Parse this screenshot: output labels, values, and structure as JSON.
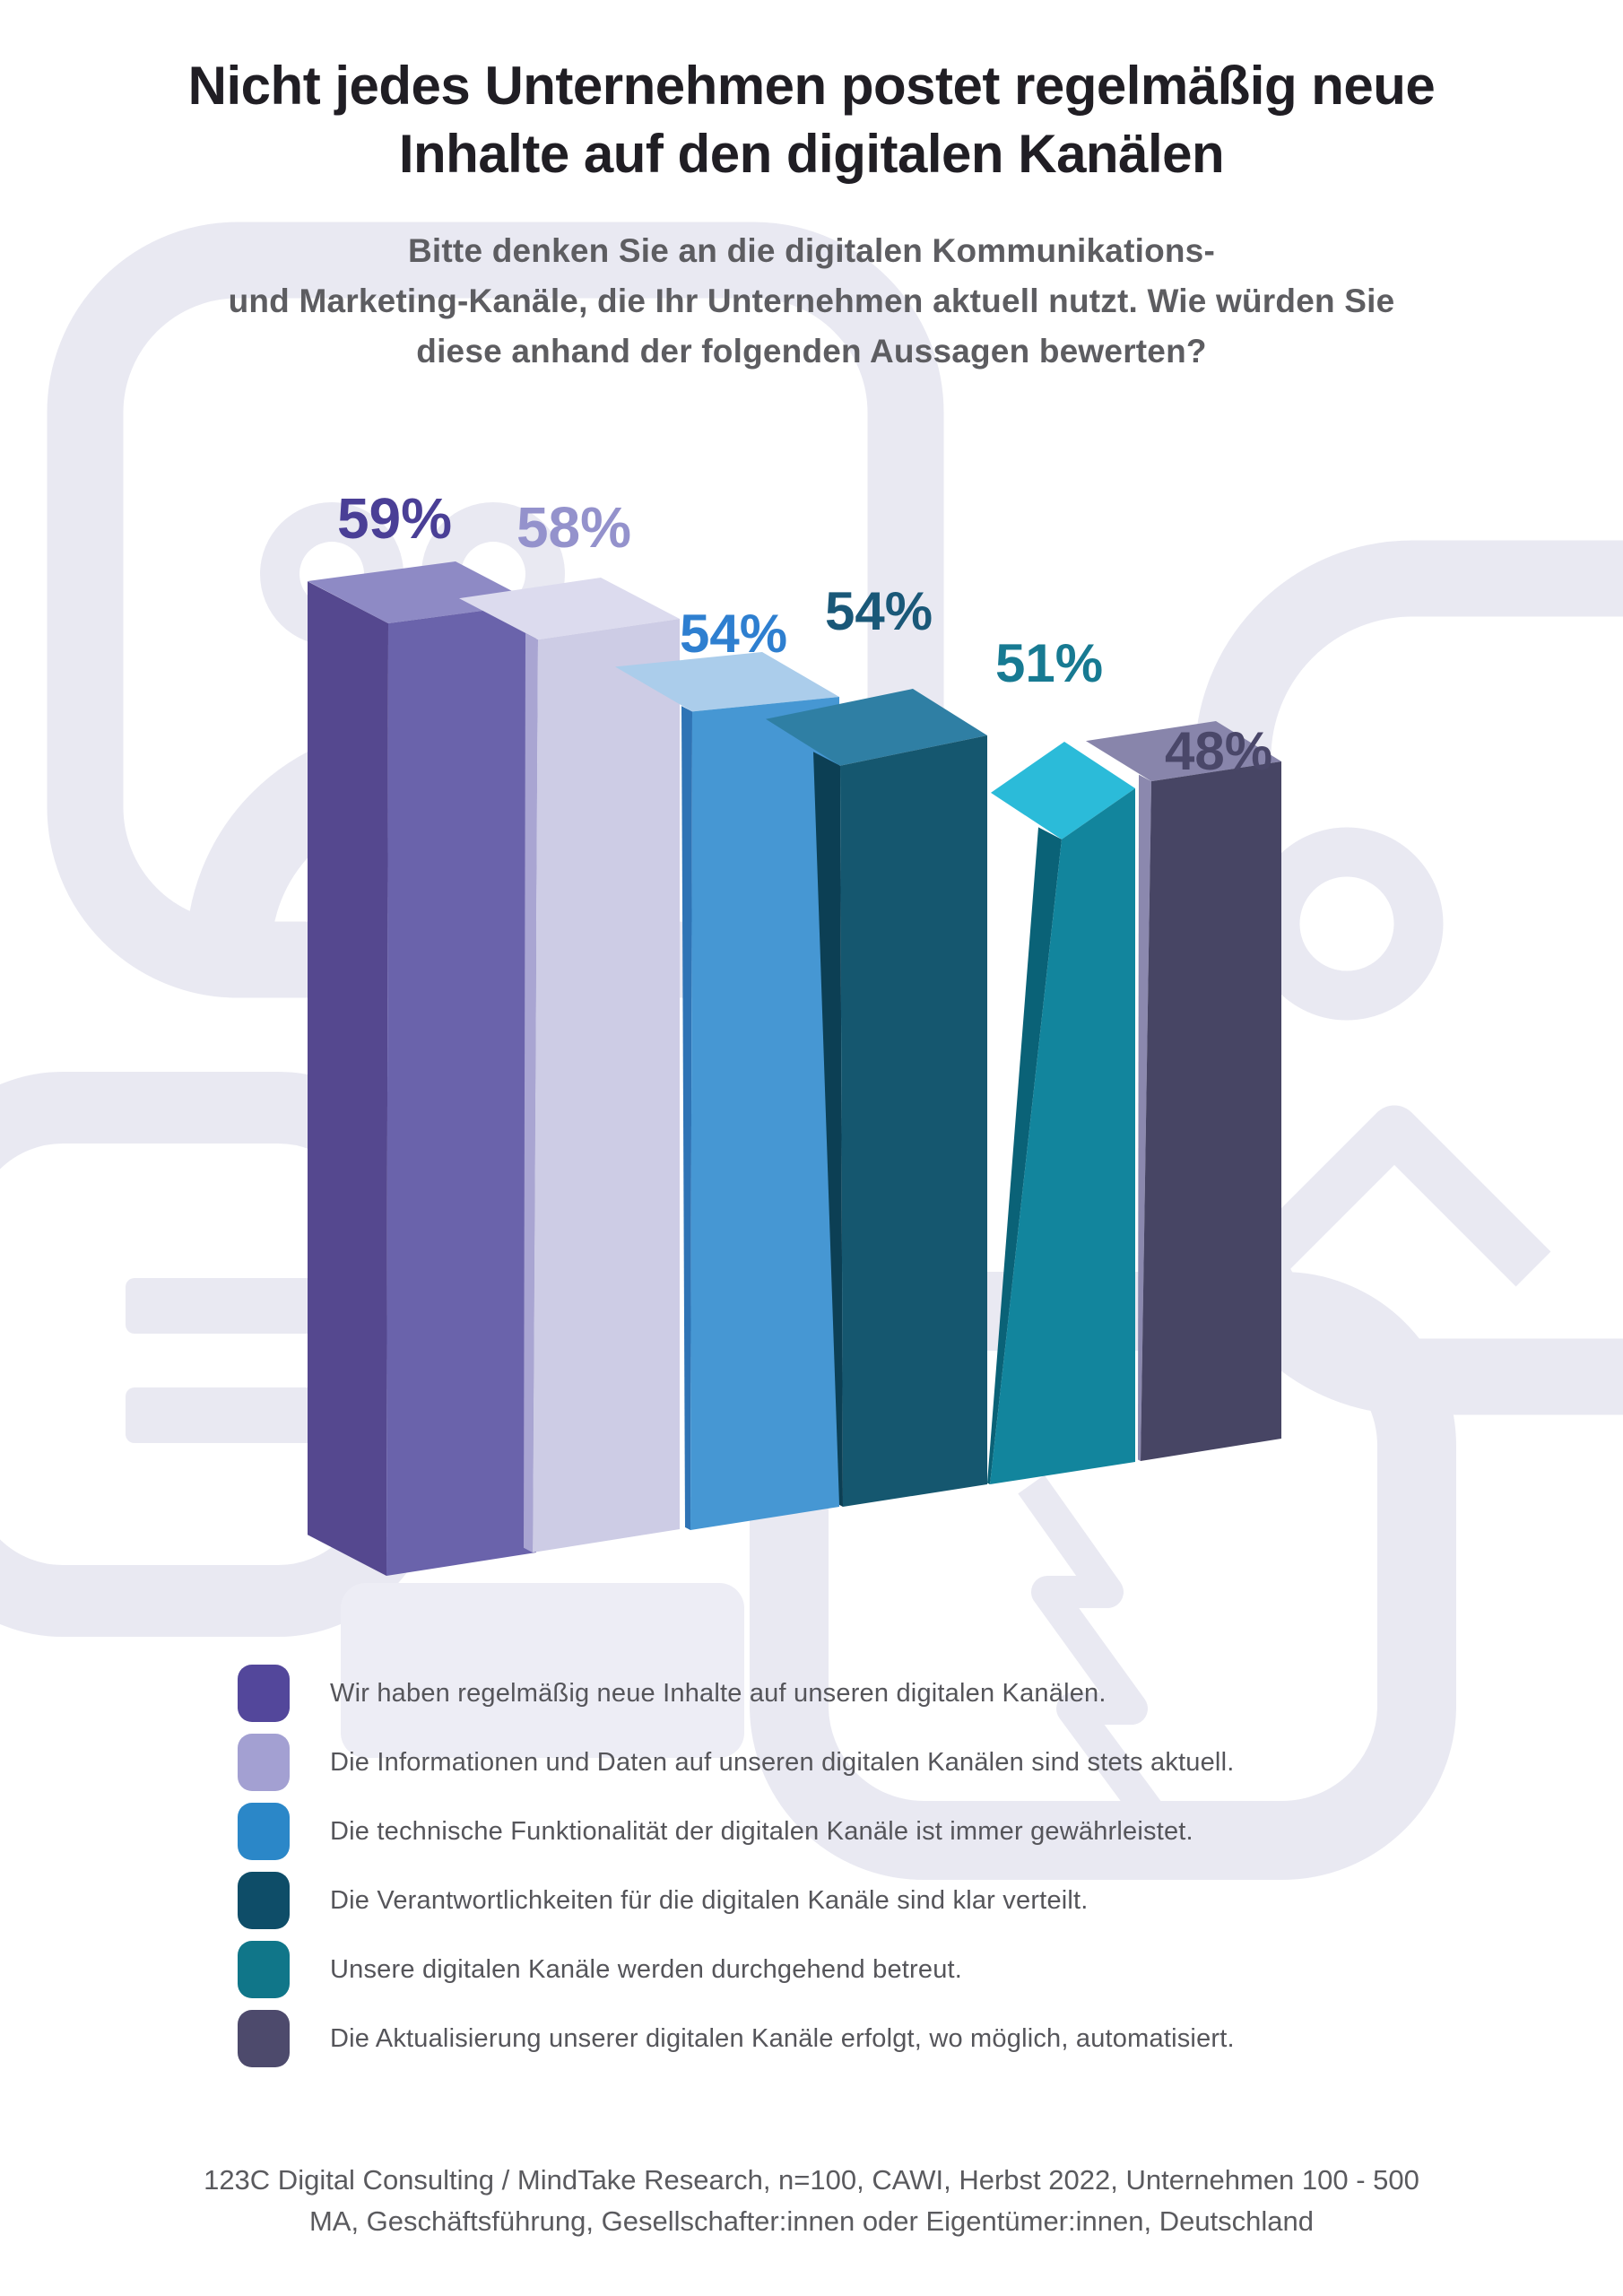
{
  "title": {
    "lines": [
      "Nicht jedes Unternehmen postet regelmäßig neue",
      "Inhalte auf den digitalen Kanälen"
    ]
  },
  "subtitle": {
    "lines": [
      "Bitte denken Sie an die digitalen Kommunikations-",
      "und Marketing-Kanäle, die Ihr Unternehmen aktuell nutzt. Wie würden Sie",
      "diese anhand der folgenden Aussagen bewerten?"
    ]
  },
  "chart_data": {
    "type": "bar",
    "title": "Nicht jedes Unternehmen postet regelmäßig neue Inhalte auf den digitalen Kanälen",
    "unit": "%",
    "ylim": [
      0,
      100
    ],
    "grid": false,
    "legend_position": "bottom",
    "categories": [
      "Wir haben regelmäßig neue Inhalte auf unseren digitalen Kanälen.",
      "Die Informationen und Daten auf unseren digitalen Kanälen sind stets aktuell.",
      "Die technische Funktionalität der digitalen Kanäle ist immer gewährleistet.",
      "Die Verantwortlichkeiten für die digitalen Kanäle sind klar verteilt.",
      "Unsere digitalen Kanäle werden durchgehend betreut.",
      "Die Aktualisierung unserer digitalen Kanäle erfolgt, wo möglich, automatisiert."
    ],
    "values": [
      59,
      58,
      54,
      54,
      51,
      48
    ],
    "data_labels": [
      "59%",
      "58%",
      "54%",
      "54%",
      "51%",
      "48%"
    ],
    "bar_colors": [
      {
        "front": "#6A63AB",
        "side": "#55488F",
        "top": "#8E8AC5",
        "label": "#4A3F96"
      },
      {
        "front": "#CDCCE5",
        "side": "#A9A5D2",
        "top": "#DCDBEE",
        "label": "#9492CC"
      },
      {
        "front": "#4697D3",
        "side": "#2F74B5",
        "top": "#ABCDEB",
        "label": "#2E7FD0"
      },
      {
        "front": "#15576F",
        "side": "#0C3F54",
        "top": "#2F7FA4",
        "label": "#1A5878"
      },
      {
        "front": "#12859D",
        "side": "#0A6277",
        "top": "#2BBBD9",
        "label": "#177A92"
      },
      {
        "front": "#474564",
        "side": "#8B88AE",
        "top": "#8885AB",
        "label": "#4A4769"
      }
    ],
    "legend_swatch_colors": [
      "#53479B",
      "#A3A0D2",
      "#2B87C8",
      "#0E4D68",
      "#107689",
      "#4D4A6C"
    ]
  },
  "footer": {
    "lines": [
      "123C Digital Consulting / MindTake Research, n=100, CAWI, Herbst 2022, Unternehmen 100 - 500",
      "MA, Geschäftsführung, Gesellschafter:innen oder Eigentümer:innen, Deutschland"
    ]
  },
  "colors": {
    "background": "#FFFFFF",
    "watermark": "#E9E9F2",
    "watermark_light": "#EDEDF5",
    "title_text": "#201E24",
    "subtitle_text": "#5D5D61",
    "legend_text": "#55555A"
  }
}
